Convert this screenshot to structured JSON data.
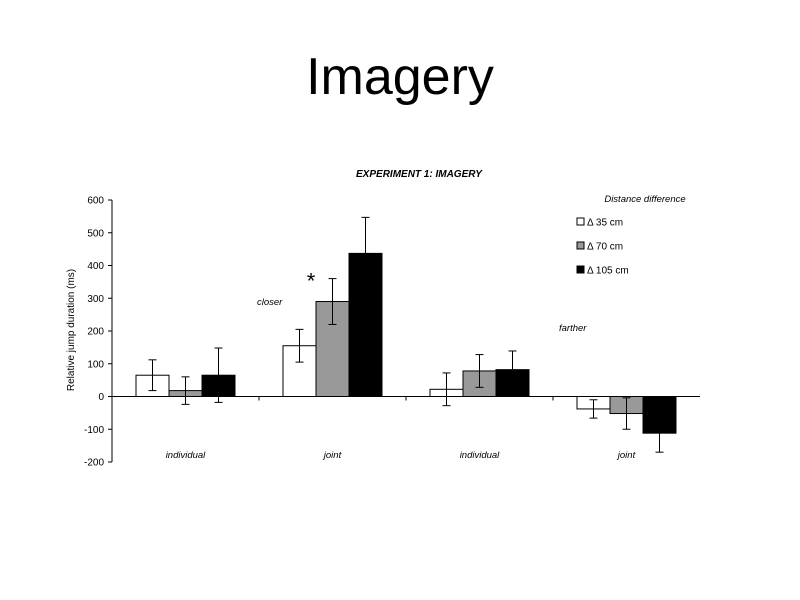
{
  "slide": {
    "title": "Imagery"
  },
  "chart_data": {
    "type": "bar",
    "title": "EXPERIMENT 1: IMAGERY",
    "ylabel": "Relative jump duration (ms)",
    "xlabel": "",
    "ylim": [
      -200,
      600
    ],
    "yticks": [
      600,
      500,
      400,
      300,
      200,
      100,
      0,
      -100,
      -200
    ],
    "legend_title": "Distance difference",
    "legend_position": "top-right",
    "groups": [
      {
        "label": "individual",
        "section": "closer"
      },
      {
        "label": "joint",
        "section": "closer"
      },
      {
        "label": "individual",
        "section": "farther"
      },
      {
        "label": "joint",
        "section": "farther"
      }
    ],
    "section_labels": {
      "closer": "closer",
      "farther": "farther"
    },
    "series": [
      {
        "name": "Δ 35 cm",
        "color": "#ffffff",
        "values": [
          65,
          155,
          22,
          -38
        ],
        "errors": [
          47,
          50,
          50,
          28
        ]
      },
      {
        "name": "Δ 70 cm",
        "color": "#999999",
        "values": [
          18,
          290,
          78,
          -52
        ],
        "errors": [
          42,
          70,
          50,
          48
        ]
      },
      {
        "name": "Δ 105 cm",
        "color": "#000000",
        "values": [
          65,
          437,
          82,
          -112
        ],
        "errors": [
          83,
          110,
          57,
          58
        ]
      }
    ],
    "annotations": [
      {
        "text": "*",
        "group": 1,
        "series": 1
      }
    ]
  }
}
